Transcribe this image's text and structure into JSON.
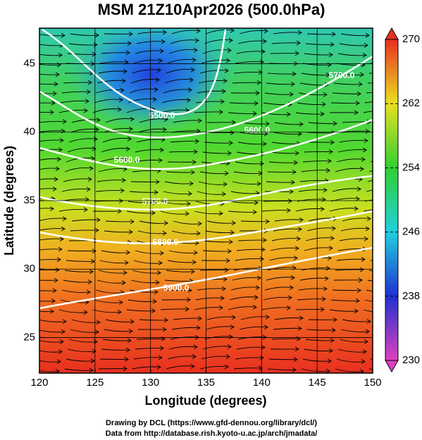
{
  "chart_data": {
    "type": "map",
    "title": "MSM 21Z10Apr2026 (500.0hPa)",
    "x_label": "Longitude (degrees)",
    "y_label": "Latitude  (degrees)",
    "xlim": [
      120,
      150
    ],
    "ylim": [
      22.4,
      47.6
    ],
    "xticks": [
      120,
      125,
      130,
      135,
      140,
      145,
      150
    ],
    "yticks": [
      25,
      30,
      35,
      40,
      45
    ],
    "grid": true,
    "colorbar": {
      "lim": [
        230,
        270
      ],
      "ticks": [
        230,
        238,
        246,
        254,
        262,
        270
      ],
      "colors": [
        "#e040c0",
        "#2030d0",
        "#20d0e0",
        "#30d030",
        "#e8e020",
        "#e83020"
      ]
    },
    "contour_labels": [
      "5500.0",
      "5600.0",
      "5700.0",
      "5800.0",
      "5900.0",
      "5600.0",
      "5700.0"
    ],
    "footer": [
      "Drawing by DCL (https://www.gfd-dennou.org/library/dcl/)",
      "Data from http://database.rish.kyoto-u.ac.jp/arch/jmadata/"
    ]
  }
}
